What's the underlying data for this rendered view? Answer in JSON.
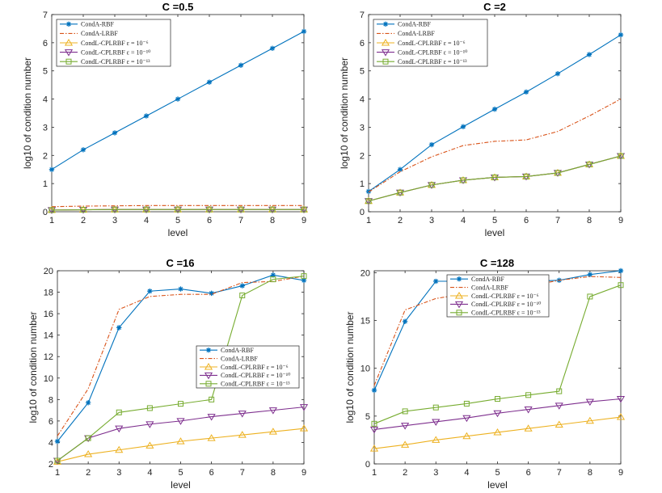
{
  "figure": {
    "legend_entries": [
      {
        "key": "condA_rbf",
        "label": "CondA-RBF",
        "color": "#0072bd",
        "dash": "",
        "marker": "asterisk"
      },
      {
        "key": "condA_lrbf",
        "label": "CondA-LRBF",
        "color": "#d95319",
        "dash": "5,2,1.5,2",
        "marker": "none"
      },
      {
        "key": "condL_eps6",
        "label": "CondL-CPLRBF ε = 10⁻⁶",
        "color": "#edb120",
        "dash": "",
        "marker": "triangle-up"
      },
      {
        "key": "condL_eps10",
        "label": "CondL-CPLRBF ε = 10⁻¹⁰",
        "color": "#7e2f8e",
        "dash": "",
        "marker": "triangle-down"
      },
      {
        "key": "condL_eps13",
        "label": "CondL-CPLRBF ε = 10⁻¹³",
        "color": "#77ac30",
        "dash": "",
        "marker": "square"
      }
    ]
  },
  "chart_data": [
    {
      "type": "line",
      "title": "C =0.5",
      "xlabel": "level",
      "ylabel": "log10 of condition number",
      "x": [
        1,
        2,
        3,
        4,
        5,
        6,
        7,
        8,
        9
      ],
      "xlim": [
        1,
        9
      ],
      "ylim": [
        0,
        7
      ],
      "yticks": [
        0,
        1,
        2,
        3,
        4,
        5,
        6,
        7
      ],
      "legend_position": "top-left",
      "series": [
        {
          "name": "CondA-RBF",
          "values": [
            1.5,
            2.2,
            2.8,
            3.4,
            4.0,
            4.6,
            5.2,
            5.8,
            6.4
          ]
        },
        {
          "name": "CondA-LRBF",
          "values": [
            0.18,
            0.2,
            0.21,
            0.22,
            0.22,
            0.22,
            0.22,
            0.22,
            0.22
          ]
        },
        {
          "name": "CondL-CPLRBF ε = 10⁻⁶",
          "values": [
            0.06,
            0.07,
            0.08,
            0.08,
            0.08,
            0.08,
            0.08,
            0.08,
            0.08
          ]
        },
        {
          "name": "CondL-CPLRBF ε = 10⁻¹⁰",
          "values": [
            0.06,
            0.07,
            0.08,
            0.08,
            0.08,
            0.08,
            0.08,
            0.08,
            0.08
          ]
        },
        {
          "name": "CondL-CPLRBF ε = 10⁻¹³",
          "values": [
            0.06,
            0.07,
            0.08,
            0.08,
            0.08,
            0.08,
            0.08,
            0.08,
            0.08
          ]
        }
      ]
    },
    {
      "type": "line",
      "title": "C =2",
      "xlabel": "level",
      "ylabel": "log10 of condition number",
      "x": [
        1,
        2,
        3,
        4,
        5,
        6,
        7,
        8,
        9
      ],
      "xlim": [
        1,
        9
      ],
      "ylim": [
        0,
        7
      ],
      "yticks": [
        0,
        1,
        2,
        3,
        4,
        5,
        6,
        7
      ],
      "legend_position": "top-left",
      "series": [
        {
          "name": "CondA-RBF",
          "values": [
            0.72,
            1.5,
            2.38,
            3.02,
            3.64,
            4.25,
            4.9,
            5.58,
            6.28
          ]
        },
        {
          "name": "CondA-LRBF",
          "values": [
            0.7,
            1.42,
            1.95,
            2.35,
            2.5,
            2.55,
            2.85,
            3.4,
            4.0
          ]
        },
        {
          "name": "CondL-CPLRBF ε = 10⁻⁶",
          "values": [
            0.38,
            0.68,
            0.95,
            1.12,
            1.22,
            1.25,
            1.38,
            1.68,
            1.98
          ]
        },
        {
          "name": "CondL-CPLRBF ε = 10⁻¹⁰",
          "values": [
            0.38,
            0.68,
            0.95,
            1.12,
            1.22,
            1.25,
            1.38,
            1.68,
            1.98
          ]
        },
        {
          "name": "CondL-CPLRBF ε = 10⁻¹³",
          "values": [
            0.38,
            0.68,
            0.95,
            1.12,
            1.22,
            1.25,
            1.38,
            1.68,
            1.98
          ]
        }
      ]
    },
    {
      "type": "line",
      "title": "C =16",
      "xlabel": "level",
      "ylabel": "log10 of condition number",
      "x": [
        1,
        2,
        3,
        4,
        5,
        6,
        7,
        8,
        9
      ],
      "xlim": [
        1,
        9
      ],
      "ylim": [
        2,
        20
      ],
      "yticks": [
        2,
        4,
        6,
        8,
        10,
        12,
        14,
        16,
        18,
        20
      ],
      "legend_position": "middle-right",
      "series": [
        {
          "name": "CondA-RBF",
          "values": [
            4.1,
            7.7,
            14.7,
            18.1,
            18.3,
            17.9,
            18.6,
            19.6,
            19.1
          ]
        },
        {
          "name": "CondA-LRBF",
          "values": [
            4.6,
            9.0,
            16.4,
            17.6,
            17.8,
            17.8,
            18.9,
            19.0,
            19.5
          ]
        },
        {
          "name": "CondL-CPLRBF ε = 10⁻⁶",
          "values": [
            2.2,
            2.9,
            3.3,
            3.7,
            4.1,
            4.4,
            4.7,
            5.0,
            5.3
          ]
        },
        {
          "name": "CondL-CPLRBF ε = 10⁻¹⁰",
          "values": [
            2.3,
            4.4,
            5.3,
            5.7,
            6.0,
            6.4,
            6.7,
            7.0,
            7.3
          ]
        },
        {
          "name": "CondL-CPLRBF ε = 10⁻¹³",
          "values": [
            2.3,
            4.4,
            6.8,
            7.2,
            7.6,
            8.0,
            17.7,
            19.2,
            19.5
          ]
        }
      ]
    },
    {
      "type": "line",
      "title": "C =128",
      "xlabel": "level",
      "ylabel": "log10 of condition number",
      "x": [
        1,
        2,
        3,
        4,
        5,
        6,
        7,
        8,
        9
      ],
      "xlim": [
        1,
        9
      ],
      "ylim": [
        0,
        20.2
      ],
      "yticks": [
        0,
        5,
        10,
        15,
        20
      ],
      "legend_position": "top-center",
      "series": [
        {
          "name": "CondA-RBF",
          "values": [
            7.7,
            14.9,
            19.1,
            19.1,
            19.1,
            19.1,
            19.2,
            19.8,
            20.2
          ]
        },
        {
          "name": "CondA-LRBF",
          "values": [
            8.2,
            16.1,
            17.3,
            17.8,
            18.2,
            18.6,
            19.2,
            19.6,
            19.5
          ]
        },
        {
          "name": "CondL-CPLRBF ε = 10⁻⁶",
          "values": [
            1.6,
            2.0,
            2.5,
            2.9,
            3.3,
            3.7,
            4.1,
            4.5,
            4.9
          ]
        },
        {
          "name": "CondL-CPLRBF ε = 10⁻¹⁰",
          "values": [
            3.6,
            4.0,
            4.4,
            4.8,
            5.3,
            5.7,
            6.1,
            6.5,
            6.8
          ]
        },
        {
          "name": "CondL-CPLRBF ε = 10⁻¹³",
          "values": [
            4.2,
            5.5,
            5.9,
            6.3,
            6.8,
            7.2,
            7.6,
            17.5,
            18.7
          ]
        }
      ]
    }
  ]
}
